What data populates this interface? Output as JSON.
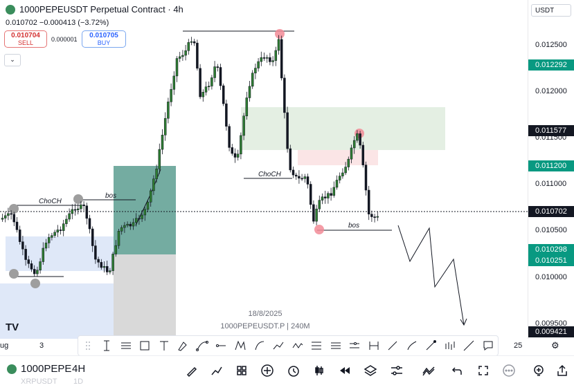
{
  "header": {
    "symbol_title": "1000PEPEUSDT Perpetual Contract · 4h",
    "price_line": "0.010702 −0.000413 (−3.72%)",
    "sell_price": "0.010704",
    "sell_label": "SELL",
    "spread": "0.000001",
    "buy_price": "0.010705",
    "buy_label": "BUY"
  },
  "price_axis": {
    "currency": "USDT",
    "ticks": [
      "0.012500",
      "0.012000",
      "0.011500",
      "0.011000",
      "0.010500",
      "0.010000",
      "0.009500"
    ],
    "badges": [
      {
        "text": "0.012292",
        "color": "#089981"
      },
      {
        "text": "0.011577",
        "color": "#131722"
      },
      {
        "text": "0.011200",
        "color": "#089981"
      },
      {
        "text": "0.010702",
        "color": "#131722"
      },
      {
        "text": "0.010298",
        "color": "#089981"
      },
      {
        "text": "0.010251",
        "color": "#089981"
      },
      {
        "text": "0.009421",
        "color": "#131722"
      }
    ]
  },
  "chart": {
    "labels": {
      "choch_left": "ChoCH",
      "bos_left": "bos",
      "choch_mid": "ChoCH",
      "bos_right": "bos"
    },
    "watermark_date": "18/8/2025",
    "watermark_symbol": "1000PEPEUSDT.P | 240M",
    "brand_logo": "TV"
  },
  "time_axis": {
    "left_label": "ug",
    "label_3": "3",
    "label_25": "25"
  },
  "toolbar_icons": [
    "grip-icon",
    "cursor-line-icon",
    "horizontal-lines-icon",
    "rectangle-icon",
    "text-icon",
    "brush-icon",
    "path-icon",
    "horizontal-line-icon",
    "pattern-icon",
    "curve-icon",
    "arrow-path-icon",
    "zigzag-icon",
    "fib-icon",
    "long-position-icon",
    "parallel-icon",
    "measure-icon",
    "trendline-icon",
    "pen-icon",
    "ray-icon",
    "candles-icon",
    "extended-line-icon",
    "comment-icon"
  ],
  "bottom_bar": {
    "symbol": "1000PEPE",
    "interval": "4H",
    "ghost_symbol_1": "XRPUSDT",
    "ghost_interval_1": "1D"
  }
}
